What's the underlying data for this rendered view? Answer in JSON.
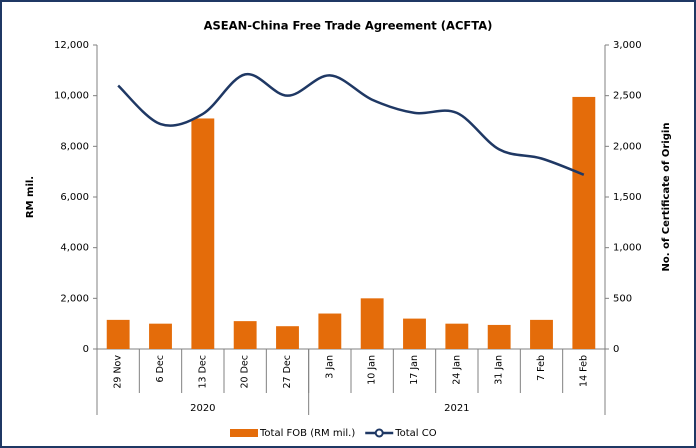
{
  "chart_data": {
    "type": "bar",
    "title": "ASEAN-China Free Trade Agreement (ACFTA)",
    "y_label": "RM mil.",
    "y2_label": "No. of Certificate of Origin",
    "categories": [
      "29 Nov",
      "6 Dec",
      "13 Dec",
      "20 Dec",
      "27 Dec",
      "3 Jan",
      "10 Jan",
      "17 Jan",
      "24 Jan",
      "31 Jan",
      "7 Feb",
      "14 Feb"
    ],
    "groups": [
      {
        "name": "2020",
        "count": 5
      },
      {
        "name": "2021",
        "count": 7
      }
    ],
    "series": [
      {
        "name": "Total FOB (RM mil.)",
        "type": "bar",
        "color": "#e46c0a",
        "axis": "y",
        "values": [
          1150,
          1000,
          9100,
          1100,
          900,
          1400,
          2000,
          1200,
          1000,
          950,
          1150,
          9950
        ]
      },
      {
        "name": "Total CO",
        "type": "line",
        "color": "#1f3864",
        "axis": "y2",
        "values": [
          2600,
          2220,
          2320,
          2710,
          2500,
          2700,
          2460,
          2330,
          2330,
          1970,
          1880,
          1720
        ]
      }
    ],
    "ylim": [
      0,
      12000
    ],
    "yticks": [
      0,
      {
        "value": 2000,
        "label": "2,000"
      },
      {
        "value": 4000,
        "label": "4,000"
      },
      {
        "value": 6000,
        "label": "6,000"
      },
      {
        "value": 8000,
        "label": "8,000"
      },
      {
        "value": 10000,
        "label": "10,000"
      },
      {
        "value": 12000,
        "label": "12,000"
      }
    ],
    "y2lim": [
      0,
      3000
    ],
    "y2ticks": [
      0,
      500,
      {
        "value": 1000,
        "label": "1,000"
      },
      {
        "value": 1500,
        "label": "1,500"
      },
      {
        "value": 2000,
        "label": "2,000"
      },
      {
        "value": 2500,
        "label": "2,500"
      },
      {
        "value": 3000,
        "label": "3,000"
      }
    ],
    "grid": false,
    "legend": "bottom"
  }
}
